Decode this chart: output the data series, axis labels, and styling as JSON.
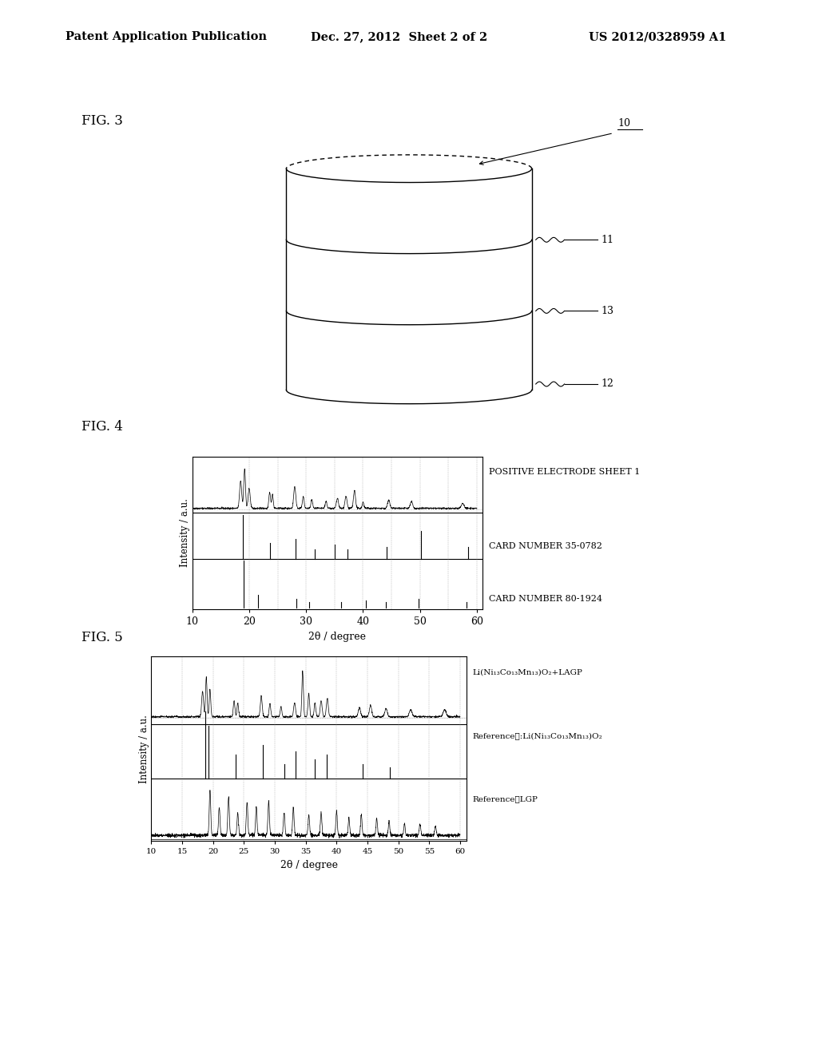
{
  "background_color": "#ffffff",
  "header_left": "Patent Application Publication",
  "header_center": "Dec. 27, 2012  Sheet 2 of 2",
  "header_right": "US 2012/0328959 A1",
  "fig3_label": "FIG. 3",
  "fig4_label": "FIG. 4",
  "fig5_label": "FIG. 5",
  "cylinder_label_10": "10",
  "cylinder_label_11": "11",
  "cylinder_label_13": "13",
  "cylinder_label_12": "12",
  "fig4_xlabel": "2θ / degree",
  "fig4_ylabel": "Intensity / a.u.",
  "fig4_xticks": [
    10,
    20,
    30,
    40,
    50,
    60
  ],
  "fig4_legend1": "POSITIVE ELECTRODE SHEET 1",
  "fig4_legend2": "CARD NUMBER 35-0782",
  "fig4_legend3": "CARD NUMBER 80-1924",
  "fig5_xlabel": "2θ / degree",
  "fig5_ylabel": "Intensity / a.u.",
  "fig5_xticks": [
    10,
    15,
    20,
    25,
    30,
    35,
    40,
    45,
    50,
    55,
    60
  ],
  "fig5_legend1": "Li(Ni₁₃Co₁₃Mn₁₃)O₂+LAGP",
  "fig5_legend2": "Reference①:Li(Ni₁₃Co₁₃Mn₁₃)O₂",
  "fig5_legend3": "Reference②LGP"
}
